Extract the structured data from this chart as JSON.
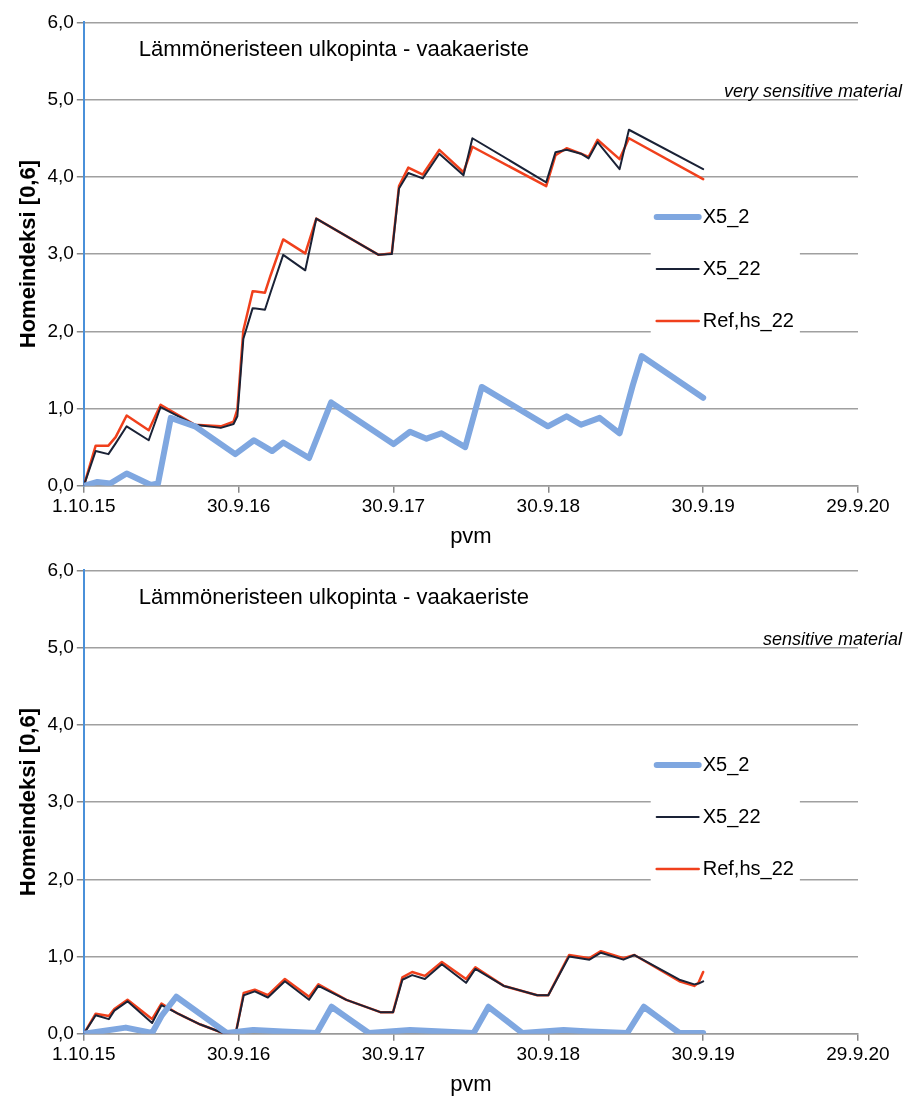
{
  "chart_data": [
    {
      "type": "line",
      "title": "Lämmöneristeen ulkopinta - vaakaeriste",
      "subtitle": "very sensitive material",
      "xlabel": "pvm",
      "ylabel": "Homeindeksi [0,6]",
      "xlim": [
        "2015-10-01",
        "2020-09-29"
      ],
      "xticks": [
        {
          "value": "2015-10-01",
          "label": "1.10.15"
        },
        {
          "value": "2016-09-30",
          "label": "30.9.16"
        },
        {
          "value": "2017-09-30",
          "label": "30.9.17"
        },
        {
          "value": "2018-09-30",
          "label": "30.9.18"
        },
        {
          "value": "2019-09-30",
          "label": "30.9.19"
        },
        {
          "value": "2020-09-29",
          "label": "29.9.20"
        }
      ],
      "ylim": [
        0,
        6
      ],
      "yticks": [
        {
          "value": 0,
          "label": "0,0"
        },
        {
          "value": 1,
          "label": "1,0"
        },
        {
          "value": 2,
          "label": "2,0"
        },
        {
          "value": 3,
          "label": "3,0"
        },
        {
          "value": 4,
          "label": "4,0"
        },
        {
          "value": 5,
          "label": "5,0"
        },
        {
          "value": 6,
          "label": "6,0"
        }
      ],
      "grid": "y",
      "legend": "right",
      "marker": "none",
      "line_style": "solid",
      "series": [
        {
          "name": "X5_2",
          "color": "#7fa7e0",
          "x": [
            "2015-10-01",
            "2015-11-02",
            "2015-12-02",
            "2016-01-10",
            "2016-03-07",
            "2016-03-24",
            "2016-04-23",
            "2016-06-19",
            "2016-09-22",
            "2016-11-05",
            "2016-12-18",
            "2017-01-13",
            "2017-03-15",
            "2017-05-06",
            "2017-09-30",
            "2017-11-08",
            "2017-12-17",
            "2018-01-21",
            "2018-03-18",
            "2018-04-26",
            "2018-09-29",
            "2018-11-12",
            "2018-12-16",
            "2019-01-29",
            "2019-03-17",
            "2019-04-17",
            "2019-05-08",
            "2019-09-30"
          ],
          "values": [
            0,
            0.05,
            0.03,
            0.16,
            0.01,
            0.03,
            0.88,
            0.77,
            0.41,
            0.59,
            0.45,
            0.56,
            0.36,
            1.08,
            0.54,
            0.7,
            0.61,
            0.68,
            0.5,
            1.28,
            0.77,
            0.9,
            0.79,
            0.88,
            0.68,
            1.3,
            1.68,
            1.14
          ]
        },
        {
          "name": "X5_22",
          "color": "#1a2236",
          "x": [
            "2015-10-01",
            "2015-10-29",
            "2015-11-28",
            "2015-12-15",
            "2016-01-10",
            "2016-03-02",
            "2016-03-30",
            "2016-06-19",
            "2016-08-19",
            "2016-09-18",
            "2016-09-27",
            "2016-10-11",
            "2016-11-02",
            "2016-12-01",
            "2016-12-14",
            "2017-01-13",
            "2017-03-06",
            "2017-04-01",
            "2017-08-26",
            "2017-09-26",
            "2017-10-13",
            "2017-11-04",
            "2017-12-08",
            "2018-01-16",
            "2018-03-14",
            "2018-04-04",
            "2018-09-25",
            "2018-10-17",
            "2018-11-12",
            "2018-12-16",
            "2019-01-03",
            "2019-01-24",
            "2019-03-17",
            "2019-04-08",
            "2019-09-30"
          ],
          "values": [
            0,
            0.45,
            0.41,
            0.55,
            0.77,
            0.59,
            1.02,
            0.79,
            0.75,
            0.8,
            0.9,
            1.9,
            2.3,
            2.28,
            2.5,
            2.99,
            2.79,
            3.46,
            2.99,
            3.0,
            3.85,
            4.05,
            3.98,
            4.3,
            4.02,
            4.5,
            3.93,
            4.32,
            4.35,
            4.3,
            4.24,
            4.45,
            4.1,
            4.61,
            4.1
          ]
        },
        {
          "name": "Ref,hs_22",
          "color": "#f0401c",
          "x": [
            "2015-10-01",
            "2015-10-29",
            "2015-11-28",
            "2015-12-15",
            "2016-01-10",
            "2016-03-02",
            "2016-03-30",
            "2016-06-19",
            "2016-08-19",
            "2016-09-18",
            "2016-09-27",
            "2016-10-11",
            "2016-11-02",
            "2016-12-01",
            "2016-12-14",
            "2017-01-13",
            "2017-03-06",
            "2017-04-01",
            "2017-08-26",
            "2017-09-26",
            "2017-10-13",
            "2017-11-04",
            "2017-12-08",
            "2018-01-16",
            "2018-03-14",
            "2018-04-04",
            "2018-09-25",
            "2018-10-17",
            "2018-11-12",
            "2018-12-16",
            "2019-01-03",
            "2019-01-24",
            "2019-03-17",
            "2019-04-08",
            "2019-09-30"
          ],
          "values": [
            0,
            0.52,
            0.52,
            0.63,
            0.91,
            0.72,
            1.05,
            0.79,
            0.77,
            0.83,
            0.99,
            2.01,
            2.52,
            2.5,
            2.72,
            3.19,
            3.01,
            3.46,
            2.99,
            3.01,
            3.88,
            4.12,
            4.03,
            4.35,
            4.06,
            4.39,
            3.88,
            4.28,
            4.37,
            4.3,
            4.26,
            4.48,
            4.23,
            4.5,
            3.97
          ]
        }
      ]
    },
    {
      "type": "line",
      "title": "Lämmöneristeen ulkopinta - vaakaeriste",
      "subtitle": "sensitive material",
      "xlabel": "pvm",
      "ylabel": "Homeindeksi [0,6]",
      "xlim": [
        "2015-10-01",
        "2020-09-29"
      ],
      "xticks": [
        {
          "value": "2015-10-01",
          "label": "1.10.15"
        },
        {
          "value": "2016-09-30",
          "label": "30.9.16"
        },
        {
          "value": "2017-09-30",
          "label": "30.9.17"
        },
        {
          "value": "2018-09-30",
          "label": "30.9.18"
        },
        {
          "value": "2019-09-30",
          "label": "30.9.19"
        },
        {
          "value": "2020-09-29",
          "label": "29.9.20"
        }
      ],
      "ylim": [
        0,
        6
      ],
      "yticks": [
        {
          "value": 0,
          "label": "0,0"
        },
        {
          "value": 1,
          "label": "1,0"
        },
        {
          "value": 2,
          "label": "2,0"
        },
        {
          "value": 3,
          "label": "3,0"
        },
        {
          "value": 4,
          "label": "4,0"
        },
        {
          "value": 5,
          "label": "5,0"
        },
        {
          "value": 6,
          "label": "6,0"
        }
      ],
      "grid": "y",
      "legend": "right",
      "marker": "none",
      "line_style": "solid",
      "series": [
        {
          "name": "X5_2",
          "color": "#7fa7e0",
          "x": [
            "2015-10-01",
            "2016-01-08",
            "2016-03-10",
            "2016-04-01",
            "2016-05-06",
            "2016-09-02",
            "2016-11-03",
            "2017-01-12",
            "2017-04-02",
            "2017-05-07",
            "2017-08-03",
            "2017-11-08",
            "2018-04-07",
            "2018-05-12",
            "2018-07-31",
            "2018-11-05",
            "2019-01-05",
            "2019-04-04",
            "2019-05-13",
            "2019-08-05",
            "2019-09-30"
          ],
          "values": [
            0,
            0.08,
            0.01,
            0.23,
            0.48,
            0.01,
            0.05,
            0.03,
            0.01,
            0.35,
            0.01,
            0.05,
            0.01,
            0.35,
            0.01,
            0.05,
            0.03,
            0.01,
            0.35,
            0.01,
            0.01
          ]
        },
        {
          "name": "X5_22",
          "color": "#1a2236",
          "x": [
            "2015-10-01",
            "2015-10-29",
            "2015-11-29",
            "2015-12-12",
            "2016-01-12",
            "2016-03-10",
            "2016-04-01",
            "2016-05-10",
            "2016-07-02",
            "2016-08-24",
            "2016-09-24",
            "2016-10-12",
            "2016-11-07",
            "2016-12-08",
            "2017-01-17",
            "2017-03-15",
            "2017-04-06",
            "2017-06-11",
            "2017-08-30",
            "2017-09-29",
            "2017-10-21",
            "2017-11-13",
            "2017-12-13",
            "2018-01-22",
            "2018-03-20",
            "2018-04-11",
            "2018-06-17",
            "2018-09-04",
            "2018-09-30",
            "2018-11-18",
            "2019-01-05",
            "2019-02-01",
            "2019-03-26",
            "2019-04-21",
            "2019-08-05",
            "2019-09-09",
            "2019-09-19",
            "2019-09-30"
          ],
          "values": [
            0,
            0.24,
            0.19,
            0.3,
            0.42,
            0.14,
            0.37,
            0.26,
            0.12,
            0.01,
            0.03,
            0.5,
            0.55,
            0.47,
            0.68,
            0.44,
            0.62,
            0.44,
            0.28,
            0.28,
            0.7,
            0.76,
            0.71,
            0.9,
            0.66,
            0.84,
            0.62,
            0.5,
            0.5,
            1.0,
            0.96,
            1.05,
            0.96,
            1.02,
            0.7,
            0.64,
            0.65,
            0.68
          ]
        },
        {
          "name": "Ref,hs_22",
          "color": "#f0401c",
          "x": [
            "2015-10-01",
            "2015-10-29",
            "2015-11-29",
            "2015-12-12",
            "2016-01-12",
            "2016-03-10",
            "2016-04-01",
            "2016-05-10",
            "2016-07-02",
            "2016-08-24",
            "2016-09-24",
            "2016-10-12",
            "2016-11-07",
            "2016-12-08",
            "2017-01-17",
            "2017-03-15",
            "2017-04-06",
            "2017-06-11",
            "2017-08-30",
            "2017-09-29",
            "2017-10-21",
            "2017-11-13",
            "2017-12-13",
            "2018-01-22",
            "2018-03-20",
            "2018-04-11",
            "2018-06-17",
            "2018-09-04",
            "2018-09-30",
            "2018-11-18",
            "2019-01-05",
            "2019-02-01",
            "2019-03-26",
            "2019-04-21",
            "2019-08-05",
            "2019-09-09",
            "2019-09-19",
            "2019-09-30"
          ],
          "values": [
            0,
            0.26,
            0.23,
            0.32,
            0.44,
            0.19,
            0.39,
            0.26,
            0.12,
            0.01,
            0.03,
            0.53,
            0.57,
            0.5,
            0.71,
            0.48,
            0.64,
            0.44,
            0.28,
            0.28,
            0.73,
            0.8,
            0.75,
            0.93,
            0.71,
            0.86,
            0.62,
            0.5,
            0.5,
            1.02,
            0.98,
            1.07,
            0.98,
            1.02,
            0.68,
            0.62,
            0.66,
            0.8
          ]
        }
      ]
    }
  ]
}
